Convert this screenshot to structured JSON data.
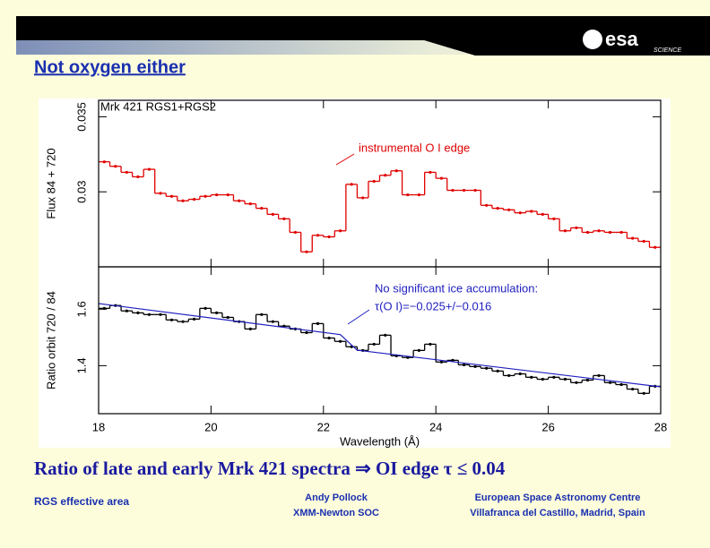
{
  "header": {
    "logo": "esa",
    "logo_sub": "SCIENCE"
  },
  "title": "Not oxygen either",
  "chart_data": [
    {
      "type": "line",
      "title": "Mrk 421 RGS1+RGS2",
      "ylabel": "Flux 84 + 720",
      "annotations": [
        "instrumental O I edge"
      ],
      "xlim": [
        18,
        28
      ],
      "ylim": [
        0.025,
        0.0361
      ],
      "yticks": [
        0.03,
        0.035
      ],
      "series": [
        {
          "color": "#e00000",
          "drawstyle": "steps-mid",
          "x": [
            18.1,
            18.3,
            18.5,
            18.7,
            18.9,
            19.1,
            19.3,
            19.5,
            19.7,
            19.9,
            20.1,
            20.3,
            20.5,
            20.7,
            20.9,
            21.1,
            21.3,
            21.5,
            21.7,
            21.9,
            22.1,
            22.3,
            22.5,
            22.7,
            22.9,
            23.1,
            23.3,
            23.5,
            23.7,
            23.9,
            24.1,
            24.3,
            24.5,
            24.7,
            24.9,
            25.1,
            25.3,
            25.5,
            25.7,
            25.9,
            26.1,
            26.3,
            26.5,
            26.7,
            26.9,
            27.1,
            27.3,
            27.5,
            27.7,
            27.9
          ],
          "values": [
            0.032,
            0.0317,
            0.0313,
            0.031,
            0.0315,
            0.0299,
            0.0297,
            0.0294,
            0.0295,
            0.0297,
            0.0298,
            0.0298,
            0.0294,
            0.0292,
            0.0289,
            0.0285,
            0.0282,
            0.0273,
            0.026,
            0.0271,
            0.027,
            0.0274,
            0.0305,
            0.0296,
            0.0307,
            0.0311,
            0.0314,
            0.0298,
            0.0298,
            0.0313,
            0.0309,
            0.0301,
            0.0301,
            0.0301,
            0.0291,
            0.0289,
            0.0288,
            0.0286,
            0.0287,
            0.0285,
            0.0282,
            0.0274,
            0.0276,
            0.0273,
            0.0274,
            0.0273,
            0.0273,
            0.0269,
            0.0267,
            0.0263
          ]
        }
      ]
    },
    {
      "type": "line",
      "ylabel": "Ratio orbit 720 / 84",
      "xlabel": "Wavelength (Å)",
      "annotations": [
        "No significant ice accumulation:",
        "τ(O I)=−0.025+/−0.016"
      ],
      "xlim": [
        18,
        28
      ],
      "xticks": [
        18,
        20,
        22,
        24,
        26,
        28
      ],
      "ylim": [
        1.23,
        1.75
      ],
      "yticks": [
        1.4,
        1.6
      ],
      "series": [
        {
          "color": "#000000",
          "drawstyle": "steps-mid",
          "x": [
            18.1,
            18.3,
            18.5,
            18.7,
            18.9,
            19.1,
            19.3,
            19.5,
            19.7,
            19.9,
            20.1,
            20.3,
            20.5,
            20.7,
            20.9,
            21.1,
            21.3,
            21.5,
            21.7,
            21.9,
            22.1,
            22.3,
            22.5,
            22.7,
            22.9,
            23.1,
            23.3,
            23.5,
            23.7,
            23.9,
            24.1,
            24.3,
            24.5,
            24.7,
            24.9,
            25.1,
            25.3,
            25.5,
            25.7,
            25.9,
            26.1,
            26.3,
            26.5,
            26.7,
            26.9,
            27.1,
            27.3,
            27.5,
            27.7,
            27.9
          ],
          "values": [
            1.603,
            1.613,
            1.594,
            1.587,
            1.581,
            1.581,
            1.562,
            1.556,
            1.565,
            1.603,
            1.587,
            1.571,
            1.556,
            1.53,
            1.581,
            1.556,
            1.54,
            1.53,
            1.517,
            1.549,
            1.498,
            1.486,
            1.467,
            1.454,
            1.476,
            1.508,
            1.435,
            1.429,
            1.454,
            1.476,
            1.413,
            1.419,
            1.403,
            1.397,
            1.391,
            1.381,
            1.365,
            1.371,
            1.359,
            1.352,
            1.359,
            1.352,
            1.34,
            1.349,
            1.365,
            1.34,
            1.333,
            1.317,
            1.302,
            1.327
          ]
        },
        {
          "color": "#2020c0",
          "drawstyle": "default",
          "x": [
            18,
            22.3,
            22.6,
            28
          ],
          "values": [
            1.62,
            1.51,
            1.455,
            1.325
          ]
        }
      ]
    }
  ],
  "conclusion": "Ratio of late and early Mrk 421 spectra ⇒ OI edge τ ≤ 0.04",
  "footer": {
    "left": "RGS effective area",
    "center": [
      "Andy Pollock",
      "XMM-Newton SOC"
    ],
    "right": [
      "European Space Astronomy Centre",
      "Villafranca del Castillo, Madrid, Spain"
    ]
  }
}
